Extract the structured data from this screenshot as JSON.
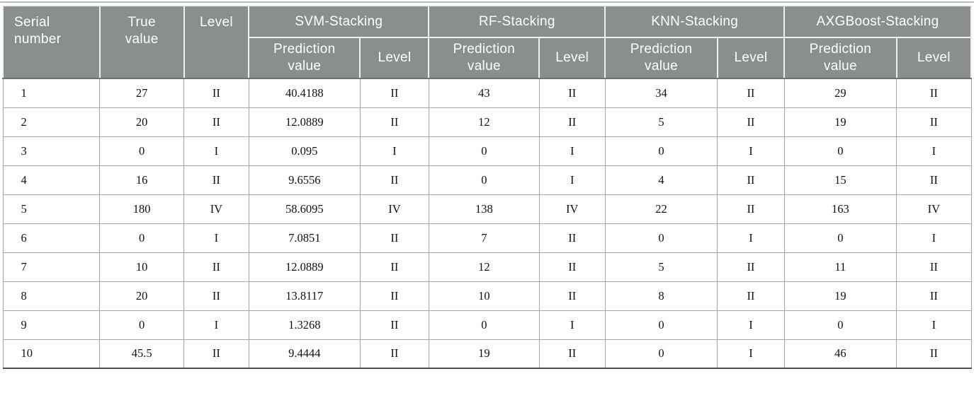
{
  "colors": {
    "header_bg": "#8a8e8f",
    "header_text": "#ffffff",
    "header_divider": "#eff1f1",
    "header_bottom_rule": "#6e7273",
    "body_border": "#a5a5a5",
    "bottom_rule": "#4f4f4f",
    "top_rule": "#b9bdbd",
    "body_text": "#111111"
  },
  "table": {
    "header": {
      "serial": "Serial number",
      "true_value": "True value",
      "level": "Level",
      "groups": [
        {
          "label": "SVM-Stacking"
        },
        {
          "label": "RF-Stacking"
        },
        {
          "label": "KNN-Stacking"
        },
        {
          "label": "AXGBoost-Stacking"
        }
      ],
      "sub_headers": [
        "Prediction value",
        "Level",
        "Prediction value",
        "Level",
        "Prediction value",
        "Level",
        "Prediction value",
        "Level"
      ]
    },
    "column_keys": [
      "serial-number",
      "true-value",
      "true-level",
      "svm-prediction-value",
      "svm-level",
      "rf-prediction-value",
      "rf-level",
      "knn-prediction-value",
      "knn-level",
      "axgboost-prediction-value",
      "axgboost-level"
    ],
    "column_widths_pct": [
      10.0,
      8.7,
      6.7,
      11.5,
      7.1,
      11.4,
      6.8,
      11.6,
      6.9,
      11.6,
      7.7
    ],
    "rows": [
      [
        "1",
        "27",
        "II",
        "40.4188",
        "II",
        "43",
        "II",
        "34",
        "II",
        "29",
        "II"
      ],
      [
        "2",
        "20",
        "II",
        "12.0889",
        "II",
        "12",
        "II",
        "5",
        "II",
        "19",
        "II"
      ],
      [
        "3",
        "0",
        "I",
        "0.095",
        "I",
        "0",
        "I",
        "0",
        "I",
        "0",
        "I"
      ],
      [
        "4",
        "16",
        "II",
        "9.6556",
        "II",
        "0",
        "I",
        "4",
        "II",
        "15",
        "II"
      ],
      [
        "5",
        "180",
        "IV",
        "58.6095",
        "IV",
        "138",
        "IV",
        "22",
        "II",
        "163",
        "IV"
      ],
      [
        "6",
        "0",
        "I",
        "7.0851",
        "II",
        "7",
        "II",
        "0",
        "I",
        "0",
        "I"
      ],
      [
        "7",
        "10",
        "II",
        "12.0889",
        "II",
        "12",
        "II",
        "5",
        "II",
        "11",
        "II"
      ],
      [
        "8",
        "20",
        "II",
        "13.8117",
        "II",
        "10",
        "II",
        "8",
        "II",
        "19",
        "II"
      ],
      [
        "9",
        "0",
        "I",
        "1.3268",
        "II",
        "0",
        "I",
        "0",
        "I",
        "0",
        "I"
      ],
      [
        "10",
        "45.5",
        "II",
        "9.4444",
        "II",
        "19",
        "II",
        "0",
        "I",
        "46",
        "II"
      ]
    ]
  },
  "chart_data": {
    "type": "table",
    "title": "",
    "columns": [
      "Serial number",
      "True value",
      "Level",
      "SVM-Stacking Prediction value",
      "SVM-Stacking Level",
      "RF-Stacking Prediction value",
      "RF-Stacking Level",
      "KNN-Stacking Prediction value",
      "KNN-Stacking Level",
      "AXGBoost-Stacking Prediction value",
      "AXGBoost-Stacking Level"
    ],
    "rows": [
      [
        "1",
        "27",
        "II",
        "40.4188",
        "II",
        "43",
        "II",
        "34",
        "II",
        "29",
        "II"
      ],
      [
        "2",
        "20",
        "II",
        "12.0889",
        "II",
        "12",
        "II",
        "5",
        "II",
        "19",
        "II"
      ],
      [
        "3",
        "0",
        "I",
        "0.095",
        "I",
        "0",
        "I",
        "0",
        "I",
        "0",
        "I"
      ],
      [
        "4",
        "16",
        "II",
        "9.6556",
        "II",
        "0",
        "I",
        "4",
        "II",
        "15",
        "II"
      ],
      [
        "5",
        "180",
        "IV",
        "58.6095",
        "IV",
        "138",
        "IV",
        "22",
        "II",
        "163",
        "IV"
      ],
      [
        "6",
        "0",
        "I",
        "7.0851",
        "II",
        "7",
        "II",
        "0",
        "I",
        "0",
        "I"
      ],
      [
        "7",
        "10",
        "II",
        "12.0889",
        "II",
        "12",
        "II",
        "5",
        "II",
        "11",
        "II"
      ],
      [
        "8",
        "20",
        "II",
        "13.8117",
        "II",
        "10",
        "II",
        "8",
        "II",
        "19",
        "II"
      ],
      [
        "9",
        "0",
        "I",
        "1.3268",
        "II",
        "0",
        "I",
        "0",
        "I",
        "0",
        "I"
      ],
      [
        "10",
        "45.5",
        "II",
        "9.4444",
        "II",
        "19",
        "II",
        "0",
        "I",
        "46",
        "II"
      ]
    ]
  }
}
